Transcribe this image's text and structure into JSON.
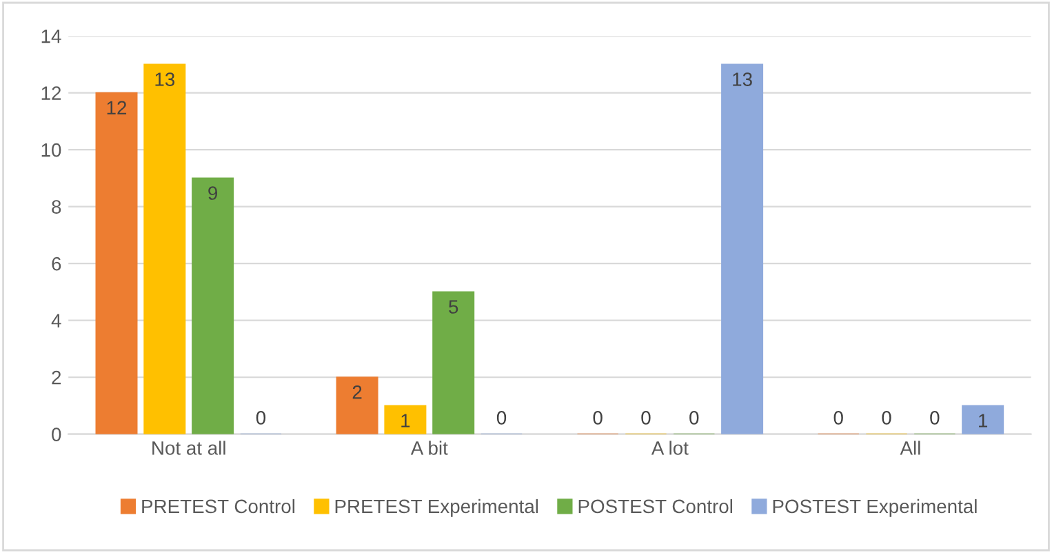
{
  "chart_data": {
    "type": "bar",
    "categories": [
      "Not at all",
      "A bit",
      "A lot",
      "All"
    ],
    "series": [
      {
        "name": "PRETEST Control",
        "color": "#ed7d31",
        "values": [
          12,
          2,
          0,
          0
        ]
      },
      {
        "name": "PRETEST Experimental",
        "color": "#ffc000",
        "values": [
          13,
          1,
          0,
          0
        ]
      },
      {
        "name": "POSTEST Control",
        "color": "#70ad47",
        "values": [
          9,
          5,
          0,
          0
        ]
      },
      {
        "name": "POSTEST Experimental",
        "color": "#8faadc",
        "values": [
          0,
          0,
          13,
          1
        ]
      }
    ],
    "ylim": [
      0,
      14
    ],
    "yticks": [
      0,
      2,
      4,
      6,
      8,
      10,
      12,
      14
    ],
    "grid": "y",
    "legend": "bottom",
    "data_labels": true
  }
}
